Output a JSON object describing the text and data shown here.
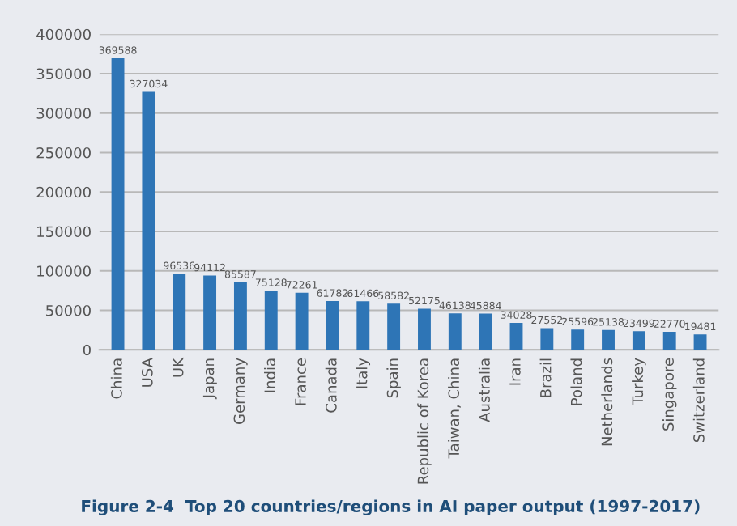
{
  "chart_data": {
    "type": "bar",
    "title": "Figure 2-4  Top 20 countries/regions in AI paper output (1997-2017)",
    "categories": [
      "China",
      "USA",
      "UK",
      "Japan",
      "Germany",
      "India",
      "France",
      "Canada",
      "Italy",
      "Spain",
      "Republic of Korea",
      "Taiwan, China",
      "Australia",
      "Iran",
      "Brazil",
      "Poland",
      "Netherlands",
      "Turkey",
      "Singapore",
      "Switzerland"
    ],
    "values": [
      369588,
      327034,
      96536,
      94112,
      85587,
      75128,
      72261,
      61782,
      61466,
      58582,
      52175,
      46138,
      45884,
      34028,
      27552,
      25596,
      25138,
      23499,
      22770,
      19481
    ],
    "color": "#2e75b6",
    "ylim": [
      0,
      400000
    ],
    "yticks": [
      0,
      50000,
      100000,
      150000,
      200000,
      250000,
      300000,
      350000,
      400000
    ],
    "grid": "y",
    "data_labels": true
  }
}
